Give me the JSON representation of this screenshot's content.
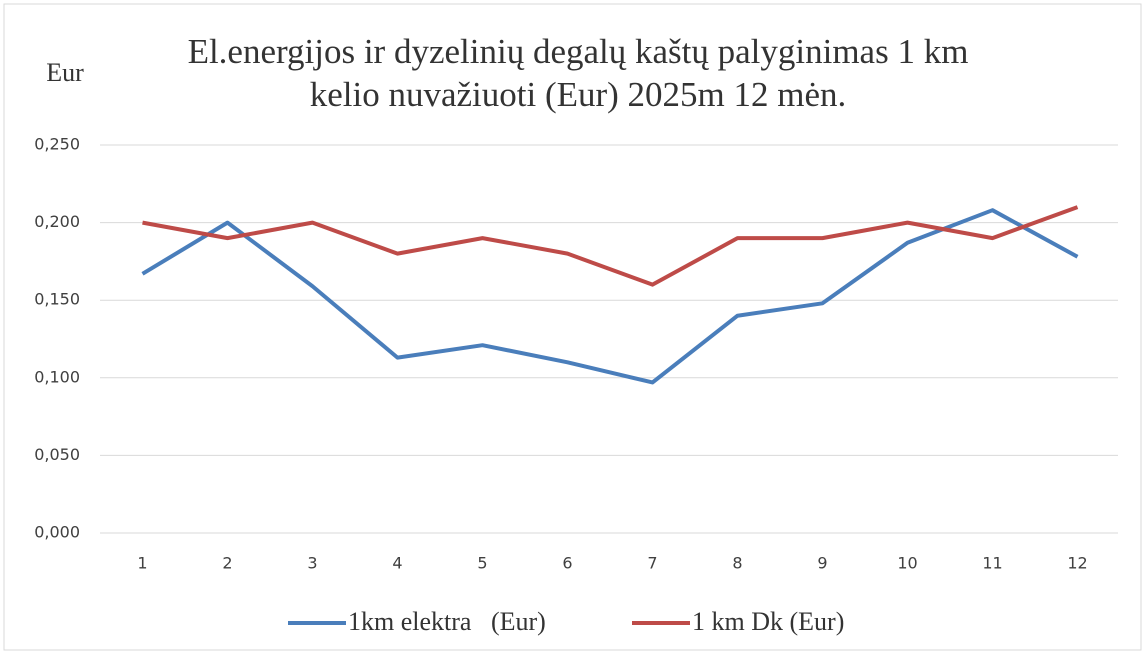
{
  "chart_data": {
    "type": "line",
    "title": [
      "El.energijos ir dyzelinių degalų kaštų palyginimas 1 km",
      "kelio nuvažiuoti (Eur) 2025m 12 mėn."
    ],
    "y_label": "Eur",
    "categories": [
      "1",
      "2",
      "3",
      "4",
      "5",
      "6",
      "7",
      "8",
      "9",
      "10",
      "11",
      "12"
    ],
    "series": [
      {
        "name": "1km elektra   (Eur)",
        "color": "#4a7ebb",
        "values": [
          0.167,
          0.2,
          0.159,
          0.113,
          0.121,
          0.11,
          0.097,
          0.14,
          0.148,
          0.187,
          0.208,
          0.178
        ]
      },
      {
        "name": "1 km Dk (Eur)",
        "color": "#be4b48",
        "values": [
          0.2,
          0.19,
          0.2,
          0.18,
          0.19,
          0.18,
          0.16,
          0.19,
          0.19,
          0.2,
          0.19,
          0.21
        ]
      }
    ],
    "ylim": [
      0,
      0.25
    ],
    "yticks": [
      {
        "value": 0,
        "label": "0,000"
      },
      {
        "value": 0.05,
        "label": "0,050"
      },
      {
        "value": 0.1,
        "label": "0,100"
      },
      {
        "value": 0.15,
        "label": "0,150"
      },
      {
        "value": 0.2,
        "label": "0,200"
      },
      {
        "value": 0.25,
        "label": "0,250"
      }
    ],
    "grid": true,
    "legend": "bottom"
  }
}
